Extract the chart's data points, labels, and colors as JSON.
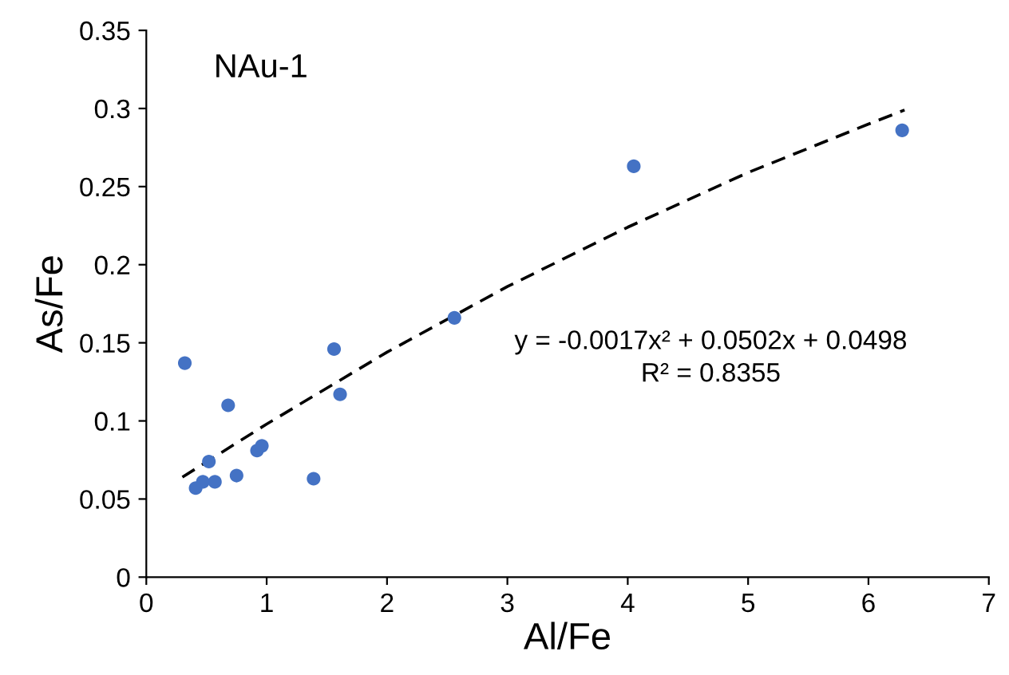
{
  "chart_data": {
    "type": "scatter",
    "xlabel": "Al/Fe",
    "ylabel": "As/Fe",
    "annotations": [
      "NAu-1",
      "y = -0.0017x² + 0.0502x + 0.0498\nR² = 0.8355"
    ],
    "series": [
      {
        "color": "#4472c4",
        "marker": "circle",
        "x": [
          0.32,
          0.41,
          0.47,
          0.52,
          0.57,
          0.68,
          0.75,
          0.92,
          0.96,
          1.39,
          1.56,
          1.61,
          2.56,
          4.05,
          6.28
        ],
        "values": [
          0.137,
          0.057,
          0.061,
          0.074,
          0.061,
          0.11,
          0.065,
          0.081,
          0.084,
          0.063,
          0.146,
          0.117,
          0.166,
          0.263,
          0.286
        ]
      },
      {
        "type": "line",
        "color": "#000000",
        "line_style": "dashed",
        "x": [
          0.3,
          1,
          2,
          3,
          4,
          5,
          6,
          6.3
        ],
        "values": [
          0.064,
          0.098,
          0.144,
          0.186,
          0.224,
          0.259,
          0.29,
          0.299
        ]
      }
    ],
    "xlim": [
      0,
      7
    ],
    "xticks": [
      0,
      1,
      2,
      3,
      4,
      5,
      6,
      7
    ],
    "ylim": [
      0,
      0.35
    ],
    "yticks": [
      0,
      0.05,
      0.1,
      0.15,
      0.2,
      0.25,
      0.3,
      0.35
    ],
    "grid": false,
    "legend": false
  }
}
